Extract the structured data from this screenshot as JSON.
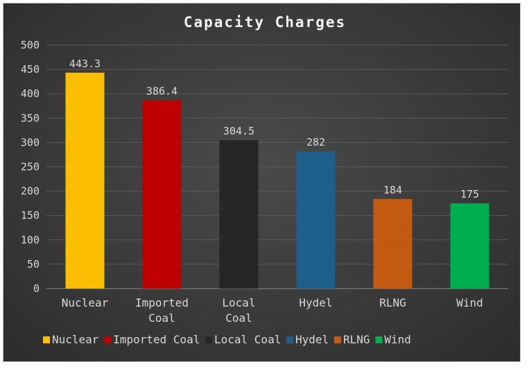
{
  "chart_data": {
    "type": "bar",
    "title": "Capacity Charges",
    "categories": [
      "Nuclear",
      "Imported Coal",
      "Local Coal",
      "Hydel",
      "RLNG",
      "Wind"
    ],
    "category_lines": [
      [
        "Nuclear"
      ],
      [
        "Imported",
        "Coal"
      ],
      [
        "Local",
        "Coal"
      ],
      [
        "Hydel"
      ],
      [
        "RLNG"
      ],
      [
        "Wind"
      ]
    ],
    "values": [
      443.3,
      386.4,
      304.5,
      282,
      184,
      175
    ],
    "data_labels": [
      "443.3",
      "386.4",
      "304.5",
      "282",
      "184",
      "175"
    ],
    "colors": [
      "#ffc000",
      "#c00000",
      "#262626",
      "#1f5f8b",
      "#c55a11",
      "#00b050"
    ],
    "ylim": [
      0,
      500
    ],
    "yticks": [
      0,
      50,
      100,
      150,
      200,
      250,
      300,
      350,
      400,
      450,
      500
    ],
    "xlabel": "",
    "ylabel": "",
    "grid": true,
    "legend_position": "bottom",
    "legend": [
      "Nuclear",
      "Imported Coal",
      "Local Coal",
      "Hydel",
      "RLNG",
      "Wind"
    ]
  }
}
